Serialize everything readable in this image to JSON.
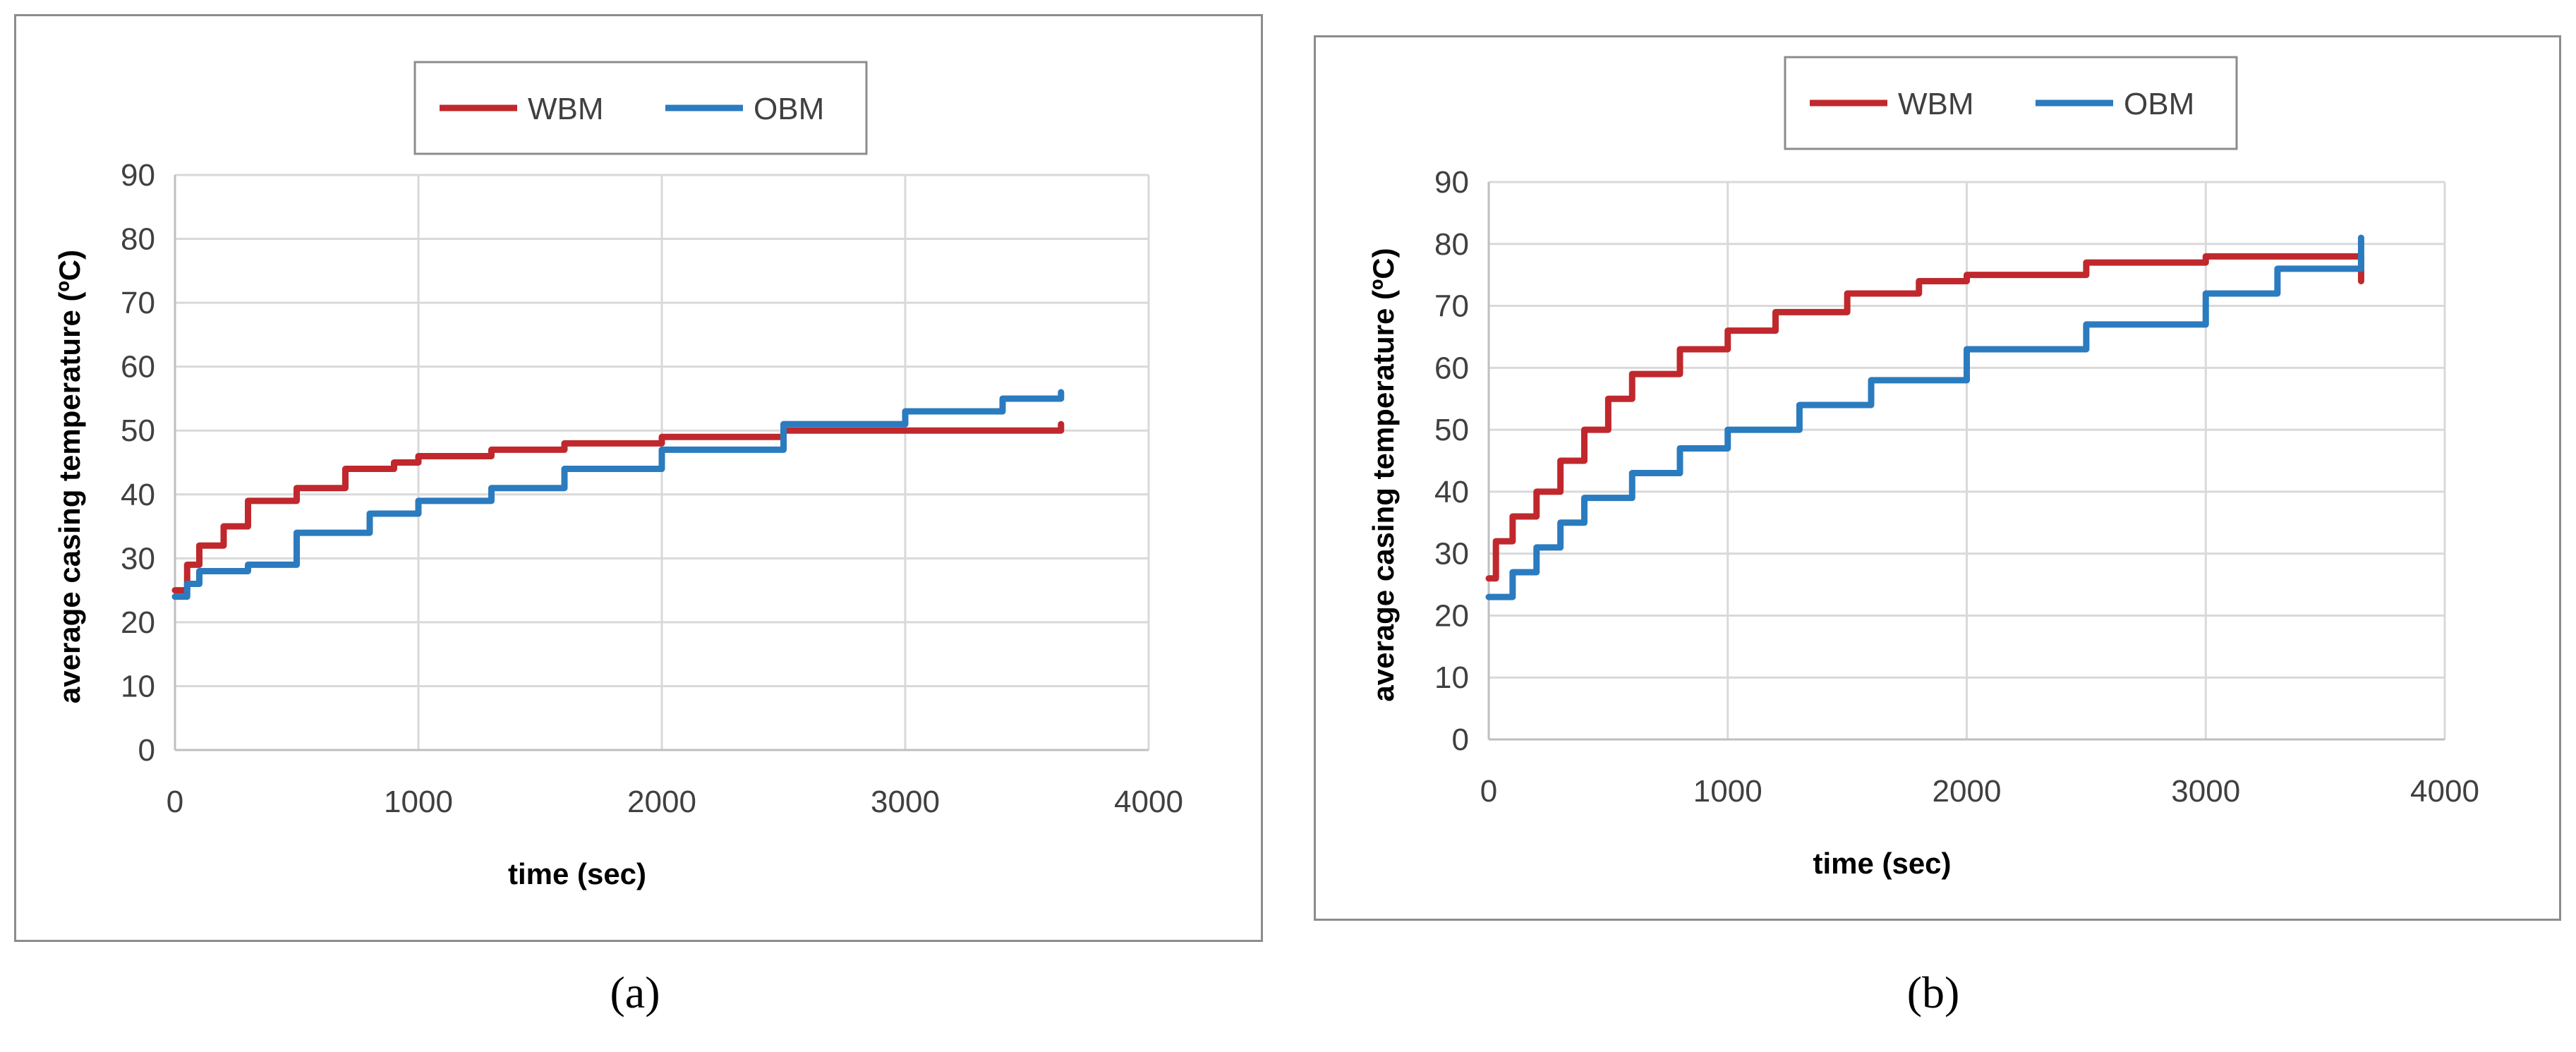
{
  "chart_data": [
    {
      "type": "line",
      "panel_label": "(a)",
      "xlabel": "time (sec)",
      "ylabel": "average casing temperature (ºC)",
      "xlim": [
        0,
        4000
      ],
      "ylim": [
        0,
        90
      ],
      "xticks": [
        0,
        1000,
        2000,
        3000,
        4000
      ],
      "yticks": [
        0,
        10,
        20,
        30,
        40,
        50,
        60,
        70,
        80,
        90
      ],
      "grid": true,
      "legend_position": "top",
      "series": [
        {
          "name": "WBM",
          "color": "#c0282d",
          "x": [
            0,
            50,
            100,
            200,
            300,
            500,
            700,
            900,
            1000,
            1300,
            1600,
            2000,
            2500,
            3000,
            3640
          ],
          "y": [
            25,
            29,
            32,
            35,
            39,
            41,
            44,
            45,
            46,
            47,
            48,
            49,
            50,
            50,
            51
          ]
        },
        {
          "name": "OBM",
          "color": "#2b7bbf",
          "x": [
            0,
            50,
            100,
            300,
            500,
            800,
            1000,
            1300,
            1600,
            2000,
            2500,
            3000,
            3400,
            3640
          ],
          "y": [
            24,
            26,
            28,
            29,
            34,
            37,
            39,
            41,
            44,
            47,
            51,
            53,
            55,
            56
          ]
        }
      ]
    },
    {
      "type": "line",
      "panel_label": "(b)",
      "xlabel": "time (sec)",
      "ylabel": "average casing temperature (ºC)",
      "xlim": [
        0,
        4000
      ],
      "ylim": [
        0,
        90
      ],
      "xticks": [
        0,
        1000,
        2000,
        3000,
        4000
      ],
      "yticks": [
        0,
        10,
        20,
        30,
        40,
        50,
        60,
        70,
        80,
        90
      ],
      "grid": true,
      "legend_position": "top",
      "series": [
        {
          "name": "WBM",
          "color": "#c0282d",
          "x": [
            0,
            30,
            100,
            200,
            300,
            400,
            500,
            600,
            800,
            1000,
            1200,
            1500,
            1800,
            2000,
            2500,
            3000,
            3300,
            3600,
            3650
          ],
          "y": [
            26,
            32,
            36,
            40,
            45,
            50,
            55,
            59,
            63,
            66,
            69,
            72,
            74,
            75,
            77,
            78,
            78,
            78,
            74
          ]
        },
        {
          "name": "OBM",
          "color": "#2b7bbf",
          "x": [
            0,
            100,
            200,
            300,
            400,
            600,
            800,
            1000,
            1300,
            1600,
            2000,
            2500,
            3000,
            3300,
            3650
          ],
          "y": [
            23,
            27,
            31,
            35,
            39,
            43,
            47,
            50,
            54,
            58,
            63,
            67,
            72,
            76,
            81
          ]
        }
      ]
    }
  ]
}
